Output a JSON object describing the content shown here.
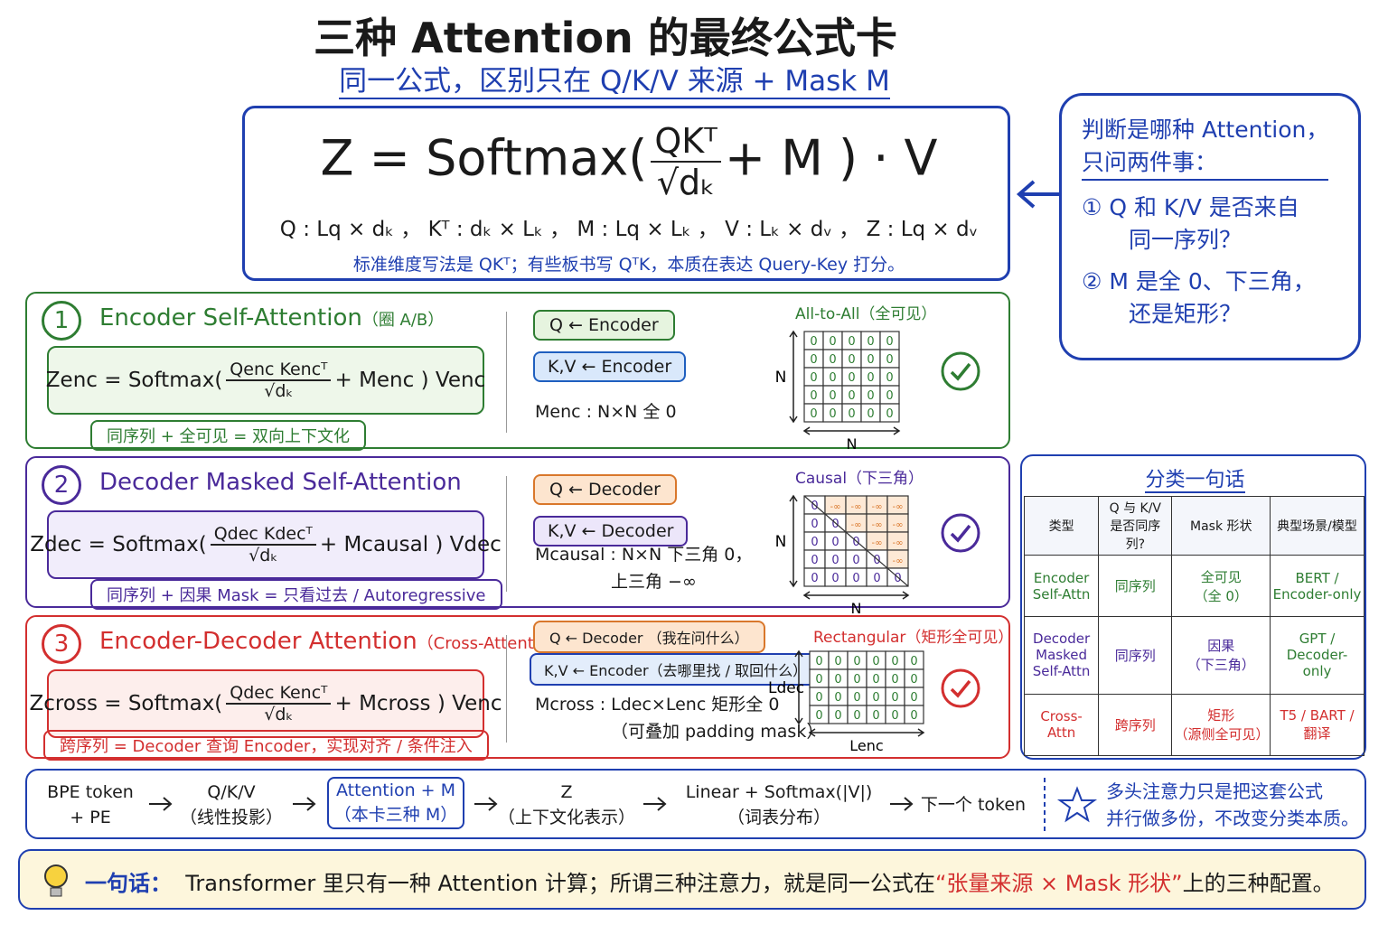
{
  "header": {
    "title": "三种 Attention 的最终公式卡",
    "subtitle": "同一公式，区别只在 Q/K/V 来源 + Mask M"
  },
  "formula": {
    "lhs": "Z = Softmax(",
    "num": "QKᵀ",
    "den": "√dₖ",
    "rhs": "+ M ) · V",
    "dims": "Q : Lq × dₖ ，  Kᵀ : dₖ × Lₖ ，  M : Lq × Lₖ ，  V : Lₖ × dᵥ ，  Z : Lq × dᵥ",
    "note": "标准维度写法是 QKᵀ；有些板书写 QᵀK，本质在表达 Query-Key 打分。"
  },
  "callout": {
    "lines": [
      "判断是哪种 Attention，",
      "只问两件事："
    ],
    "items": [
      [
        "① Q 和 K/V 是否来自",
        "同一序列？"
      ],
      [
        "② M 是全 0、下三角，",
        "还是矩形？"
      ]
    ]
  },
  "panels": [
    {
      "number": "1",
      "title": "Encoder Self-Attention",
      "note": "（圈 A/B）",
      "lhs": "Zenc = Softmax(",
      "num": "Qenc Kencᵀ",
      "den": "√dₖ",
      "rhs": "+ Menc ) Venc",
      "summary": "同序列 + 全可见 = 双向上下文化",
      "q": "Q ← Encoder",
      "kv": "K,V ← Encoder",
      "mask": [
        "Menc : N×N 全 0"
      ],
      "matrix_title": "All-to-All（全可见）",
      "row_axis": "N",
      "col_axis": "N",
      "matrix": [
        [
          "0",
          "0",
          "0",
          "0",
          "0"
        ],
        [
          "0",
          "0",
          "0",
          "0",
          "0"
        ],
        [
          "0",
          "0",
          "0",
          "0",
          "0"
        ],
        [
          "0",
          "0",
          "0",
          "0",
          "0"
        ],
        [
          "0",
          "0",
          "0",
          "0",
          "0"
        ]
      ]
    },
    {
      "number": "2",
      "title": "Decoder Masked Self-Attention",
      "note": "",
      "lhs": "Zdec = Softmax(",
      "num": "Qdec Kdecᵀ",
      "den": "√dₖ",
      "rhs": "+ Mcausal ) Vdec",
      "summary": "同序列 + 因果 Mask = 只看过去 / Autoregressive",
      "q": "Q ← Decoder",
      "kv": "K,V ← Decoder",
      "mask": [
        "Mcausal : N×N 下三角 0，",
        "上三角 −∞"
      ],
      "matrix_title": "Causal（下三角）",
      "row_axis": "N",
      "col_axis": "N",
      "matrix": [
        [
          "0",
          "-∞",
          "-∞",
          "-∞",
          "-∞"
        ],
        [
          "0",
          "0",
          "-∞",
          "-∞",
          "-∞"
        ],
        [
          "0",
          "0",
          "0",
          "-∞",
          "-∞"
        ],
        [
          "0",
          "0",
          "0",
          "0",
          "-∞"
        ],
        [
          "0",
          "0",
          "0",
          "0",
          "0"
        ]
      ]
    },
    {
      "number": "3",
      "title": "Encoder-Decoder Attention",
      "note": "（Cross-Attention，圈 C）",
      "lhs": "Zcross = Softmax(",
      "num": "Qdec Kencᵀ",
      "den": "√dₖ",
      "rhs": "+ Mcross ) Venc",
      "summary": "跨序列 = Decoder 查询 Encoder，实现对齐 / 条件注入",
      "q": "Q ← Decoder （我在问什么）",
      "kv": "K,V ← Encoder（去哪里找 / 取回什么）",
      "mask": [
        "Mcross : Ldec×Lenc 矩形全 0",
        "（可叠加 padding mask）"
      ],
      "matrix_title": "Rectangular（矩形全可见）",
      "row_axis": "Ldec",
      "col_axis": "Lenc",
      "matrix": [
        [
          "0",
          "0",
          "0",
          "0",
          "0",
          "0"
        ],
        [
          "0",
          "0",
          "0",
          "0",
          "0",
          "0"
        ],
        [
          "0",
          "0",
          "0",
          "0",
          "0",
          "0"
        ],
        [
          "0",
          "0",
          "0",
          "0",
          "0",
          "0"
        ]
      ]
    }
  ],
  "table": {
    "title": "分类一句话",
    "headers": [
      [
        "类型"
      ],
      [
        "Q 与 K/V",
        "是否同序列?"
      ],
      [
        "Mask 形状"
      ],
      [
        "典型场景/模型"
      ]
    ],
    "rows": [
      [
        [
          "Encoder",
          "Self-Attn"
        ],
        [
          "同序列"
        ],
        [
          "全可见",
          "（全 0）"
        ],
        [
          "BERT /",
          "Encoder-only"
        ]
      ],
      [
        [
          "Decoder",
          "Masked",
          "Self-Attn"
        ],
        [
          "同序列"
        ],
        [
          "因果",
          "（下三角）"
        ],
        [
          "GPT /",
          "Decoder-only"
        ]
      ],
      [
        [
          "Cross-Attn"
        ],
        [
          "跨序列"
        ],
        [
          "矩形",
          "（源侧全可见）"
        ],
        [
          "T5 / BART /",
          "翻译"
        ]
      ]
    ]
  },
  "flow": {
    "steps": [
      [
        "BPE token",
        "+ PE"
      ],
      [
        "Q/K/V",
        "（线性投影）"
      ],
      [
        "Attention + M",
        "（本卡三种 M）"
      ],
      [
        "Z",
        "（上下文化表示）"
      ],
      [
        "Linear + Softmax(|V|)",
        "（词表分布）"
      ],
      [
        "下一个 token"
      ]
    ],
    "note": [
      "多头注意力只是把这套公式",
      "并行做多份，不改变分类本质。"
    ]
  },
  "summary": {
    "label": "一句话：",
    "text": "Transformer 里只有一种 Attention 计算；所谓三种注意力，就是同一公式在",
    "highlight": "“张量来源 × Mask 形状”",
    "tail": "上的三种配置。"
  }
}
